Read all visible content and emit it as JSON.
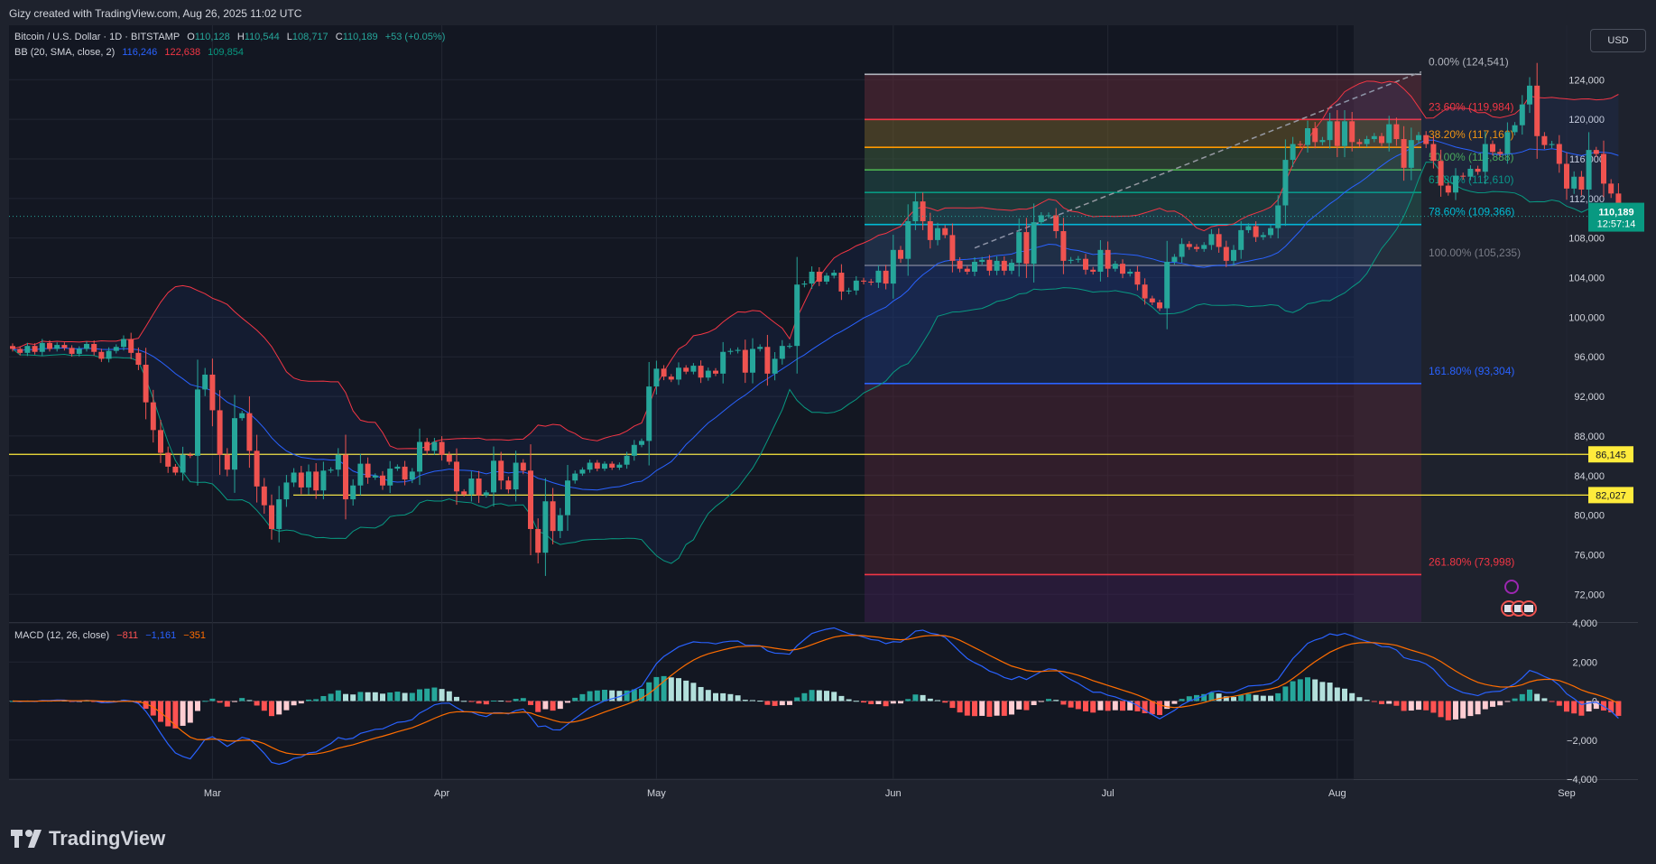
{
  "header": {
    "credit": "Gizy created with TradingView.com, Aug 26, 2025 11:02 UTC"
  },
  "legend": {
    "symbol": "Bitcoin / U.S. Dollar · 1D · BITSTAMP",
    "o_label": "O",
    "o": "110,128",
    "h_label": "H",
    "h": "110,544",
    "l_label": "L",
    "l": "108,717",
    "c_label": "C",
    "c": "110,189",
    "change": "+53 (+0.05%)",
    "bb_label": "BB (20, SMA, close, 2)",
    "bb_basis": "116,246",
    "bb_upper": "122,638",
    "bb_lower": "109,854",
    "macd_label": "MACD (12, 26, close)",
    "macd_hist": "−811",
    "macd_line": "−1,161",
    "macd_signal": "−351"
  },
  "currency_button": "USD",
  "price_tag": {
    "value": "110,189",
    "countdown": "12:57:14"
  },
  "brand": "TradingView",
  "colors": {
    "bg": "#131722",
    "up": "#26a69a",
    "down": "#ef5350",
    "grid": "#232733",
    "bb_upper": "#f23645",
    "bb_lower": "#089981",
    "bb_basis": "#2962ff",
    "macd_line": "#2962ff",
    "signal_line": "#ff6d00",
    "hline": "#ffeb3b"
  },
  "chart_data": {
    "type": "candlestick",
    "symbol": "BTCUSD",
    "interval": "1D",
    "x_ticks": [
      "Mar",
      "Apr",
      "May",
      "Jun",
      "Jul",
      "Aug",
      "Sep"
    ],
    "y_ticks": [
      "124,000",
      "120,000",
      "116,000",
      "112,000",
      "108,000",
      "104,000",
      "100,000",
      "96,000",
      "92,000",
      "88,000",
      "84,000",
      "80,000",
      "76,000",
      "72,000"
    ],
    "ylim": [
      69200,
      129500
    ],
    "ohlc_sample": {
      "open": 110128,
      "high": 110544,
      "low": 108717,
      "close": 110189
    },
    "closes_approx": [
      96800,
      96400,
      97100,
      96500,
      97400,
      96800,
      97200,
      96900,
      96300,
      96800,
      97300,
      96500,
      95800,
      96600,
      97000,
      97800,
      96400,
      95200,
      91400,
      88600,
      86300,
      84900,
      84300,
      86100,
      86000,
      92700,
      94200,
      90600,
      86100,
      84600,
      89800,
      90300,
      86500,
      82900,
      81000,
      78600,
      81600,
      83300,
      84300,
      82800,
      84400,
      82500,
      84500,
      84600,
      86100,
      81600,
      83000,
      85200,
      83800,
      84000,
      83000,
      84700,
      84900,
      83600,
      84400,
      87400,
      86500,
      87400,
      86100,
      85400,
      82400,
      82100,
      83700,
      82000,
      82300,
      85500,
      83500,
      82600,
      85300,
      84500,
      78600,
      76200,
      81400,
      78400,
      80000,
      83500,
      84200,
      84600,
      85300,
      84700,
      85200,
      84800,
      85100,
      86000,
      87100,
      87500,
      93000,
      94800,
      94000,
      93700,
      94900,
      94500,
      95100,
      93900,
      94600,
      94300,
      96500,
      96600,
      96700,
      94400,
      96800,
      97000,
      94300,
      95800,
      97100,
      97100,
      103300,
      103400,
      104600,
      103600,
      104200,
      104500,
      102600,
      102700,
      103700,
      103600,
      103500,
      104700,
      103400,
      106800,
      105900,
      109700,
      111700,
      109700,
      107800,
      109000,
      108300,
      105700,
      104900,
      104600,
      105600,
      105800,
      104700,
      105700,
      104700,
      105500,
      108600,
      105400,
      109600,
      110300,
      110300,
      108700,
      105700,
      105800,
      105900,
      104800,
      104600,
      106800,
      104900,
      105400,
      104400,
      104600,
      103300,
      101900,
      101500,
      100900,
      105600,
      106100,
      107400,
      107100,
      106900,
      107300,
      108400,
      107100,
      105700,
      106800,
      108800,
      109200,
      108100,
      108300,
      109000,
      111300,
      115900,
      117500,
      117400,
      119100,
      117700,
      117900,
      119800,
      117300,
      119800,
      117700,
      117500,
      118000,
      118300,
      117600,
      119500,
      118000,
      115100,
      117900,
      118400,
      117500,
      115800,
      113300,
      112600,
      114300,
      114200,
      115000,
      114700,
      117500,
      116700,
      116500,
      118700,
      119400,
      121500,
      123400,
      118300,
      117400,
      117500,
      115500,
      113000,
      114200,
      112900,
      116900,
      116500,
      113500,
      112500,
      110200
    ]
  },
  "bollinger": {
    "period": 20,
    "mult": 2,
    "source": "close"
  },
  "fib": [
    {
      "label": "0.00% (124,541)",
      "value": 124541
    },
    {
      "label": "23.60% (119,984)",
      "value": 119984
    },
    {
      "label": "38.20% (117,166)",
      "value": 117166
    },
    {
      "label": "50.00% (114,888)",
      "value": 114888
    },
    {
      "label": "61.80% (112,610)",
      "value": 112610
    },
    {
      "label": "78.60% (109,366)",
      "value": 109366
    },
    {
      "label": "100.00% (105,235)",
      "value": 105235
    },
    {
      "label": "161.80% (93,304)",
      "value": 93304
    },
    {
      "label": "261.80% (73,998)",
      "value": 73998
    }
  ],
  "hlines": [
    {
      "label": "86,145",
      "value": 86145
    },
    {
      "label": "82,027",
      "value": 82027
    }
  ],
  "macd": {
    "y_ticks": [
      "4,000",
      "2,000",
      "0",
      "−2,000",
      "−4,000"
    ],
    "ylim": [
      -4000,
      4000
    ],
    "last": {
      "histogram": -811,
      "macd": -1161,
      "signal": -351
    }
  }
}
